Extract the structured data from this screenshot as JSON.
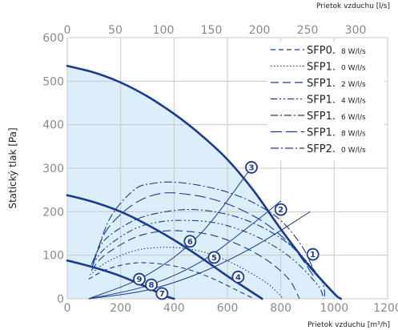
{
  "chart_data": {
    "type": "line",
    "ylabel": "Statický tlak [Pa]",
    "xlabel": "Prietok vzduchu [m³/h]",
    "x2label": "Prietok vzduchu [l/s]",
    "xlim": [
      0,
      1200
    ],
    "ylim": [
      0,
      600
    ],
    "x2lim": [
      0,
      333.3
    ],
    "x_ticks": [
      "0",
      "200",
      "400",
      "600",
      "800",
      "1000",
      "1200"
    ],
    "y_ticks": [
      "0",
      "100",
      "200",
      "300",
      "400",
      "500",
      "600"
    ],
    "x2_ticks": [
      "0",
      "50",
      "100",
      "150",
      "200",
      "250",
      "300"
    ],
    "grid": true,
    "legend_position": "top-right",
    "legend": [
      {
        "main": "SFP0.",
        "unit": "8 W/l/s",
        "dash": "6,4"
      },
      {
        "main": "SFP1.",
        "unit": "0 W/l/s",
        "dash": "1.5,2.5"
      },
      {
        "main": "SFP1.",
        "unit": "2 W/l/s",
        "dash": "10,5"
      },
      {
        "main": "SFP1.",
        "unit": "4 W/l/s",
        "dash": "8,3,2,3,2,3"
      },
      {
        "main": "SFP1.",
        "unit": "6 W/l/s",
        "dash": "9,3,2,3"
      },
      {
        "main": "SFP1.",
        "unit": "8 W/l/s",
        "dash": "14,5"
      },
      {
        "main": "SFP2.",
        "unit": "0 W/l/s",
        "dash": "10,3,2,3"
      }
    ],
    "fan_curves": [
      {
        "name": "max",
        "points": [
          [
            0,
            535
          ],
          [
            100,
            520
          ],
          [
            200,
            497
          ],
          [
            300,
            465
          ],
          [
            400,
            425
          ],
          [
            500,
            377
          ],
          [
            600,
            320
          ],
          [
            700,
            247
          ],
          [
            800,
            160
          ],
          [
            900,
            80
          ],
          [
            1000,
            12
          ],
          [
            1025,
            0
          ]
        ]
      },
      {
        "name": "mid",
        "points": [
          [
            0,
            238
          ],
          [
            100,
            222
          ],
          [
            200,
            200
          ],
          [
            300,
            170
          ],
          [
            400,
            135
          ],
          [
            500,
            95
          ],
          [
            600,
            52
          ],
          [
            680,
            20
          ],
          [
            730,
            0
          ]
        ]
      },
      {
        "name": "low",
        "points": [
          [
            0,
            88
          ],
          [
            100,
            72
          ],
          [
            200,
            52
          ],
          [
            300,
            26
          ],
          [
            360,
            8
          ],
          [
            400,
            0
          ]
        ]
      }
    ],
    "sfp_curves": [
      {
        "points": [
          [
            80,
            45
          ],
          [
            150,
            68
          ],
          [
            250,
            82
          ],
          [
            350,
            80
          ],
          [
            450,
            68
          ],
          [
            550,
            45
          ],
          [
            650,
            15
          ],
          [
            700,
            0
          ]
        ]
      },
      {
        "points": [
          [
            85,
            55
          ],
          [
            150,
            85
          ],
          [
            250,
            110
          ],
          [
            350,
            118
          ],
          [
            450,
            115
          ],
          [
            550,
            100
          ],
          [
            650,
            72
          ],
          [
            750,
            35
          ],
          [
            810,
            0
          ]
        ]
      },
      {
        "points": [
          [
            90,
            65
          ],
          [
            140,
            100
          ],
          [
            250,
            140
          ],
          [
            350,
            155
          ],
          [
            450,
            155
          ],
          [
            550,
            145
          ],
          [
            650,
            122
          ],
          [
            750,
            88
          ],
          [
            830,
            45
          ],
          [
            870,
            0
          ]
        ]
      },
      {
        "points": [
          [
            90,
            72
          ],
          [
            140,
            115
          ],
          [
            250,
            160
          ],
          [
            350,
            177
          ],
          [
            450,
            180
          ],
          [
            550,
            175
          ],
          [
            650,
            158
          ],
          [
            750,
            130
          ],
          [
            850,
            88
          ],
          [
            940,
            30
          ],
          [
            960,
            0
          ]
        ]
      },
      {
        "points": [
          [
            90,
            78
          ],
          [
            140,
            135
          ],
          [
            250,
            180
          ],
          [
            350,
            198
          ],
          [
            450,
            205
          ],
          [
            550,
            200
          ],
          [
            650,
            185
          ],
          [
            750,
            158
          ],
          [
            850,
            115
          ],
          [
            950,
            45
          ],
          [
            965,
            0
          ]
        ]
      },
      {
        "points": [
          [
            95,
            82
          ],
          [
            150,
            160
          ],
          [
            250,
            218
          ],
          [
            350,
            242
          ],
          [
            450,
            240
          ],
          [
            550,
            228
          ],
          [
            650,
            205
          ],
          [
            750,
            170
          ],
          [
            850,
            115
          ],
          [
            930,
            45
          ]
        ]
      },
      {
        "points": [
          [
            100,
            85
          ],
          [
            160,
            185
          ],
          [
            250,
            250
          ],
          [
            320,
            265
          ],
          [
            400,
            268
          ],
          [
            500,
            260
          ],
          [
            600,
            245
          ],
          [
            700,
            220
          ],
          [
            800,
            180
          ],
          [
            880,
            120
          ],
          [
            920,
            70
          ]
        ]
      }
    ],
    "system_curves": [
      {
        "points": [
          [
            80,
            0
          ],
          [
            300,
            20
          ],
          [
            500,
            60
          ],
          [
            700,
            120
          ],
          [
            910,
            200
          ]
        ]
      },
      {
        "points": [
          [
            80,
            0
          ],
          [
            300,
            30
          ],
          [
            500,
            85
          ],
          [
            700,
            175
          ],
          [
            800,
            225
          ]
        ]
      },
      {
        "points": [
          [
            80,
            0
          ],
          [
            300,
            55
          ],
          [
            500,
            150
          ],
          [
            700,
            310
          ]
        ]
      }
    ],
    "points": [
      {
        "label": "1",
        "x": 920,
        "y": 102
      },
      {
        "label": "2",
        "x": 800,
        "y": 205
      },
      {
        "label": "3",
        "x": 690,
        "y": 302
      },
      {
        "label": "4",
        "x": 640,
        "y": 50
      },
      {
        "label": "5",
        "x": 550,
        "y": 95
      },
      {
        "label": "6",
        "x": 460,
        "y": 132
      },
      {
        "label": "7",
        "x": 355,
        "y": 12
      },
      {
        "label": "8",
        "x": 315,
        "y": 32
      },
      {
        "label": "9",
        "x": 270,
        "y": 45
      }
    ],
    "colors": {
      "fill": "#ddeefb",
      "curve": "#1a3a8f",
      "grid": "#c8c8c8",
      "tick": "#8a8a8a"
    }
  }
}
